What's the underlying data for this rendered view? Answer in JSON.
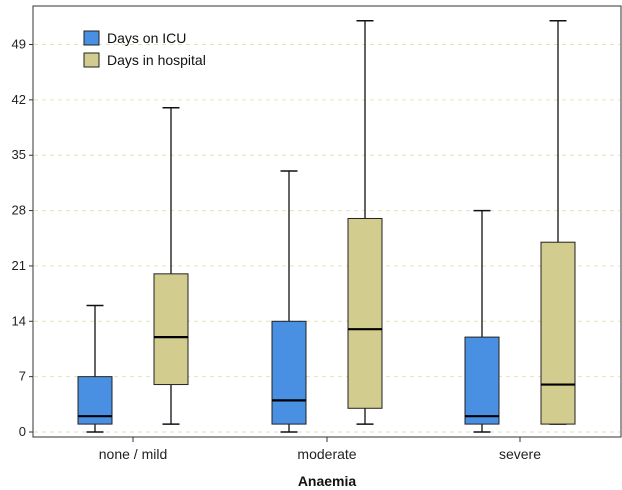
{
  "chart_data": {
    "type": "boxplot",
    "xlabel": "Anaemia",
    "ylabel": "",
    "ylim": [
      0,
      52
    ],
    "yticks": [
      0,
      7,
      14,
      21,
      28,
      35,
      42,
      49
    ],
    "grid": "horizontal dashed",
    "legend_position": "top-left",
    "categories": [
      "none / mild",
      "moderate",
      "severe"
    ],
    "series": [
      {
        "name": "Days on ICU",
        "color": "#4a90e2",
        "boxes": [
          {
            "min": 0,
            "q1": 1,
            "median": 2,
            "q3": 7,
            "max": 16
          },
          {
            "min": 0,
            "q1": 1,
            "median": 4,
            "q3": 14,
            "max": 33
          },
          {
            "min": 0,
            "q1": 1,
            "median": 2,
            "q3": 12,
            "max": 28
          }
        ]
      },
      {
        "name": "Days in hospital",
        "color": "#d2cc8e",
        "boxes": [
          {
            "min": 1,
            "q1": 6,
            "median": 12,
            "q3": 20,
            "max": 41
          },
          {
            "min": 1,
            "q1": 3,
            "median": 13,
            "q3": 27,
            "max": 52
          },
          {
            "min": 1,
            "q1": 1,
            "median": 6,
            "q3": 24,
            "max": 52
          }
        ]
      }
    ]
  }
}
